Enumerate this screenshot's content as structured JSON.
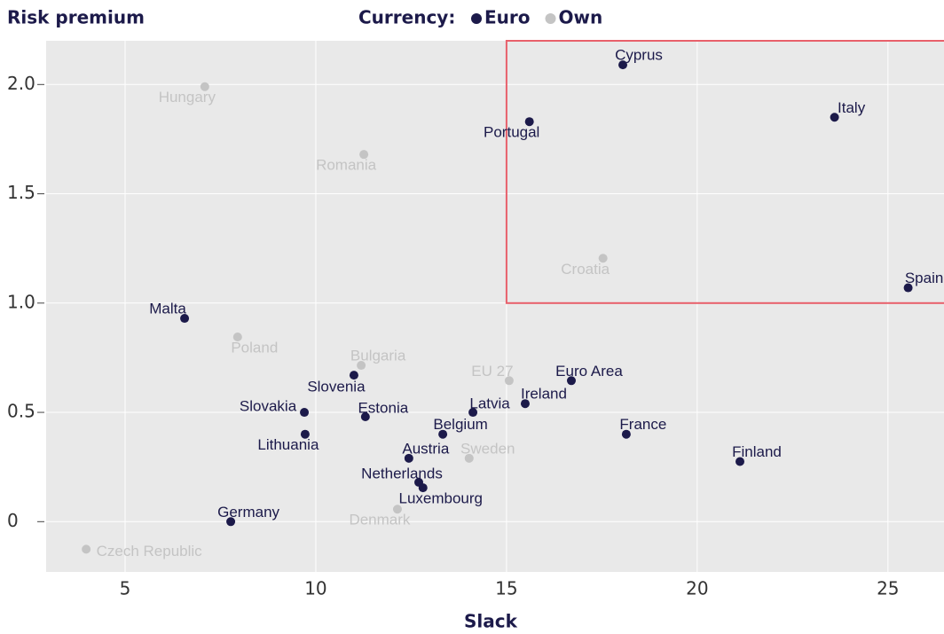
{
  "chart_data": {
    "type": "scatter",
    "title": "Risk premium",
    "x_label": "Slack",
    "legend_title": "Currency:",
    "legend_position": "top",
    "grid": true,
    "xlim": [
      2.93,
      26.47
    ],
    "ylim": [
      -0.23,
      2.2
    ],
    "xticks": [
      5,
      10,
      15,
      20,
      25
    ],
    "yticks": [
      0,
      0.5,
      {
        "value": 1,
        "label": "1.0"
      },
      1.5,
      {
        "value": 2,
        "label": "2.0"
      }
    ],
    "highlight": {
      "x": [
        15,
        26.47
      ],
      "y": [
        1.0,
        2.2
      ],
      "color": "#e8606b"
    },
    "series": [
      {
        "name": "Euro",
        "color": "#1c1a4a",
        "labels": [
          "Cyprus",
          "Portugal",
          "Italy",
          "Spain",
          "Malta",
          "Slovenia",
          "Slovakia",
          "Estonia",
          "Lithuania",
          "Latvia",
          "Ireland",
          "Euro Area",
          "Belgium",
          "Austria",
          "Netherlands",
          "Luxembourg",
          "Germany",
          "France",
          "Finland"
        ],
        "x": [
          18.05,
          15.6,
          23.6,
          25.53,
          6.56,
          11.0,
          9.7,
          11.3,
          9.72,
          14.12,
          15.49,
          16.7,
          13.33,
          12.44,
          12.7,
          12.81,
          7.77,
          18.14,
          21.12
        ],
        "values": [
          2.09,
          1.83,
          1.85,
          1.07,
          0.93,
          0.67,
          0.5,
          0.48,
          0.4,
          0.5,
          0.54,
          0.645,
          0.4,
          0.29,
          0.18,
          0.155,
          0.0,
          0.4,
          0.275
        ]
      },
      {
        "name": "Own",
        "color": "#c4c4c4",
        "labels": [
          "Hungary",
          "Romania",
          "Croatia",
          "Poland",
          "Bulgaria",
          "EU 27",
          "Sweden",
          "Denmark",
          "Czech Republic"
        ],
        "x": [
          7.09,
          11.26,
          17.53,
          7.95,
          11.19,
          15.07,
          14.02,
          12.14,
          3.98
        ],
        "values": [
          1.99,
          1.68,
          1.205,
          0.845,
          0.715,
          0.645,
          0.29,
          0.057,
          -0.126
        ]
      }
    ]
  }
}
